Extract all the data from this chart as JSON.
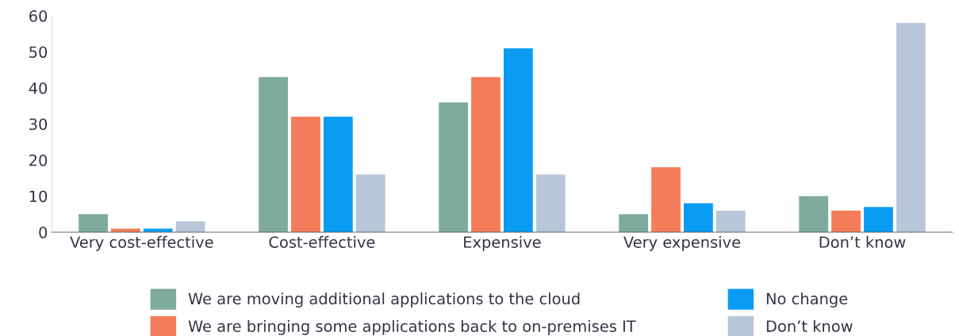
{
  "chart_data": {
    "type": "bar",
    "categories": [
      "Very cost-effective",
      "Cost-effective",
      "Expensive",
      "Very expensive",
      "Don’t know"
    ],
    "series": [
      {
        "name": "We are moving additional applications to the cloud",
        "color": "#7faa9e",
        "values": [
          5,
          43,
          36,
          5,
          10
        ]
      },
      {
        "name": "We are bringing some applications back to on-premises IT",
        "color": "#f47c5a",
        "values": [
          1,
          32,
          43,
          18,
          6
        ]
      },
      {
        "name": "No change",
        "color": "#0a9cf5",
        "values": [
          1,
          32,
          51,
          8,
          7
        ]
      },
      {
        "name": "Don’t know",
        "color": "#b8c6da",
        "values": [
          3,
          16,
          16,
          6,
          58
        ]
      }
    ],
    "ylim": [
      0,
      60
    ],
    "yticks": [
      0,
      10,
      20,
      30,
      40,
      50,
      60
    ],
    "grid": false,
    "legend": "bottom"
  }
}
